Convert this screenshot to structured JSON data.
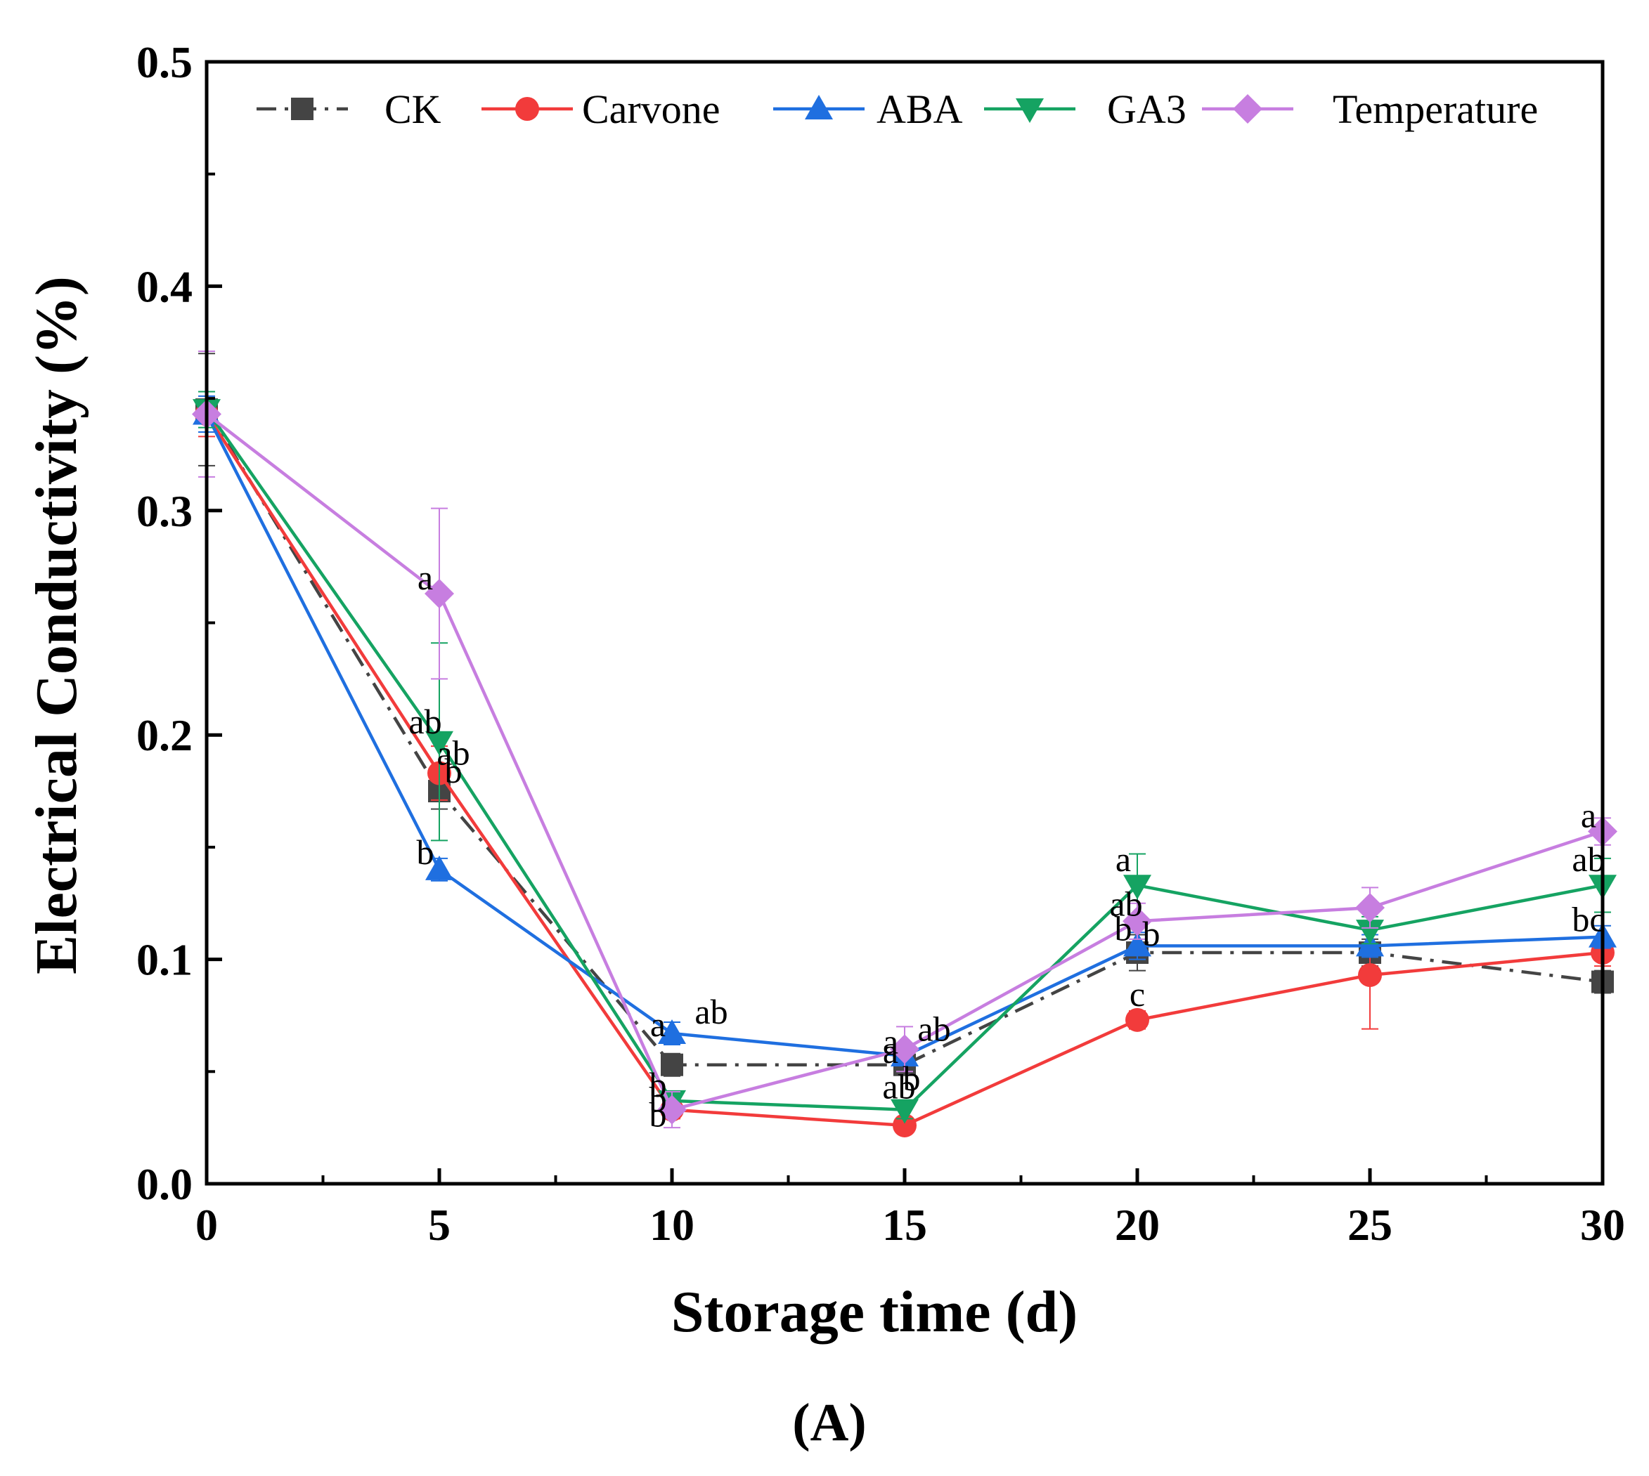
{
  "chart_data": {
    "type": "line",
    "xlabel": "Storage time (d)",
    "ylabel": "Electrical Conductivity (%)",
    "panel_label": "(A)",
    "x": [
      0,
      5,
      10,
      15,
      20,
      25,
      30
    ],
    "xlim": [
      0,
      30
    ],
    "ylim": [
      0,
      0.5
    ],
    "x_ticks": [
      "0",
      "5",
      "10",
      "15",
      "20",
      "25",
      "30"
    ],
    "y_ticks": [
      "0.0",
      "0.1",
      "0.2",
      "0.3",
      "0.4",
      "0.5"
    ],
    "legend_position": "top",
    "series": [
      {
        "name": "CK",
        "color": "#444444",
        "marker": "square",
        "dash": "dashdot",
        "values": [
          0.345,
          0.175,
          0.053,
          0.053,
          0.103,
          0.103,
          0.09
        ],
        "errors": [
          0.025,
          0.008,
          0.005,
          0.004,
          0.008,
          0.006,
          0.005
        ]
      },
      {
        "name": "Carvone",
        "color": "#f23b3b",
        "marker": "circle",
        "dash": "solid",
        "values": [
          0.343,
          0.183,
          0.033,
          0.026,
          0.073,
          0.093,
          0.103
        ],
        "errors": [
          0.01,
          0.012,
          0.004,
          0.003,
          0.004,
          0.024,
          0.006
        ]
      },
      {
        "name": "ABA",
        "color": "#1f6fe0",
        "marker": "triangle-up",
        "dash": "solid",
        "values": [
          0.343,
          0.14,
          0.067,
          0.057,
          0.106,
          0.106,
          0.11
        ],
        "errors": [
          0.008,
          0.005,
          0.005,
          0.004,
          0.006,
          0.005,
          0.005
        ]
      },
      {
        "name": "GA3",
        "color": "#15a362",
        "marker": "triangle-down",
        "dash": "solid",
        "values": [
          0.345,
          0.197,
          0.037,
          0.033,
          0.133,
          0.113,
          0.133
        ],
        "errors": [
          0.008,
          0.044,
          0.004,
          0.004,
          0.014,
          0.006,
          0.012
        ]
      },
      {
        "name": "Temperature",
        "color": "#c77ee0",
        "marker": "diamond",
        "dash": "solid",
        "values": [
          0.343,
          0.263,
          0.033,
          0.06,
          0.117,
          0.123,
          0.157
        ],
        "errors": [
          0.028,
          0.038,
          0.008,
          0.01,
          0.008,
          0.009,
          0.006
        ]
      }
    ],
    "annotations": [
      {
        "text": "a",
        "x": 5,
        "y": 0.263,
        "series": "Temperature"
      },
      {
        "text": "ab",
        "x": 5,
        "y": 0.197,
        "series": "GA3"
      },
      {
        "text": "ab",
        "x": 5,
        "y": 0.183,
        "series": "Carvone"
      },
      {
        "text": "b",
        "x": 5,
        "y": 0.175,
        "series": "CK"
      },
      {
        "text": "b",
        "x": 5,
        "y": 0.14,
        "series": "ABA"
      },
      {
        "text": "a",
        "x": 10,
        "y": 0.067,
        "series": "ABA"
      },
      {
        "text": "ab",
        "x": 10,
        "y": 0.067,
        "series": "ABA"
      },
      {
        "text": "b",
        "x": 10,
        "y": 0.037,
        "series": "GA3"
      },
      {
        "text": "b",
        "x": 10,
        "y": 0.033,
        "series": "Carvone"
      },
      {
        "text": "b",
        "x": 10,
        "y": 0.033,
        "series": "Temperature"
      },
      {
        "text": "a",
        "x": 15,
        "y": 0.06,
        "series": "Temperature"
      },
      {
        "text": "ab",
        "x": 15,
        "y": 0.06,
        "series": "Temperature"
      },
      {
        "text": "a",
        "x": 15,
        "y": 0.057,
        "series": "ABA"
      },
      {
        "text": "ab",
        "x": 15,
        "y": 0.033,
        "series": "GA3"
      },
      {
        "text": "b",
        "x": 15,
        "y": 0.026,
        "series": "Carvone"
      },
      {
        "text": "a",
        "x": 20,
        "y": 0.133,
        "series": "GA3"
      },
      {
        "text": "ab",
        "x": 20,
        "y": 0.117,
        "series": "Temperature"
      },
      {
        "text": "b",
        "x": 20,
        "y": 0.106,
        "series": "ABA"
      },
      {
        "text": "b",
        "x": 20,
        "y": 0.103,
        "series": "CK"
      },
      {
        "text": "c",
        "x": 20,
        "y": 0.073,
        "series": "Carvone"
      },
      {
        "text": "a",
        "x": 30,
        "y": 0.157,
        "series": "Temperature"
      },
      {
        "text": "ab",
        "x": 30,
        "y": 0.133,
        "series": "GA3"
      },
      {
        "text": "bc",
        "x": 30,
        "y": 0.11,
        "series": "ABA"
      }
    ]
  }
}
